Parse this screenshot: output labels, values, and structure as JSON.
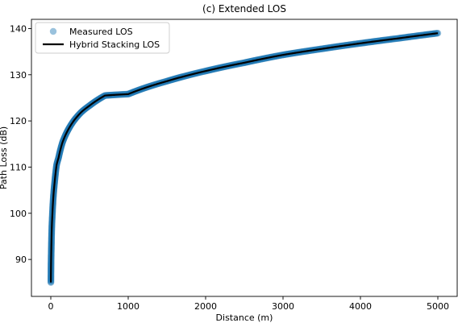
{
  "chart_data": {
    "type": "line",
    "title": "(c) Extended LOS",
    "xlabel": "Distance (m)",
    "ylabel": "Path Loss (dB)",
    "xlim": [
      -250,
      5250
    ],
    "ylim": [
      82,
      142
    ],
    "xticks": [
      0,
      1000,
      2000,
      3000,
      4000,
      5000
    ],
    "yticks": [
      90,
      100,
      110,
      120,
      130,
      140
    ],
    "legend_position": "top-left",
    "grid": false,
    "series": [
      {
        "name": "Measured LOS",
        "kind": "scatter",
        "color": "#1f77b4",
        "x": [
          1,
          2,
          3,
          5,
          8,
          12,
          20,
          35,
          50,
          75,
          100,
          150,
          200,
          300,
          400,
          500,
          700,
          1000,
          1500,
          2000,
          2500,
          3000,
          3500,
          4000,
          4500,
          5000
        ],
        "y": [
          85.0,
          87.2,
          88.8,
          91.0,
          93.6,
          96.5,
          99.6,
          104.0,
          106.8,
          110.5,
          112.0,
          115.3,
          117.3,
          120.1,
          122.0,
          123.3,
          125.5,
          125.8,
          128.6,
          130.8,
          132.6,
          134.3,
          135.6,
          136.8,
          137.9,
          139.0
        ]
      },
      {
        "name": "Hybrid Stacking LOS",
        "kind": "line",
        "color": "#000000",
        "x": [
          1,
          2,
          3,
          5,
          8,
          12,
          20,
          35,
          50,
          75,
          100,
          150,
          200,
          300,
          400,
          500,
          700,
          1000,
          1500,
          2000,
          2500,
          3000,
          3500,
          4000,
          4500,
          5000
        ],
        "y": [
          85.0,
          87.2,
          88.8,
          91.0,
          93.6,
          96.5,
          99.6,
          104.0,
          106.8,
          110.5,
          112.0,
          115.3,
          117.3,
          120.1,
          122.0,
          123.3,
          125.5,
          125.8,
          128.6,
          130.8,
          132.6,
          134.3,
          135.6,
          136.8,
          137.9,
          139.0
        ]
      }
    ]
  }
}
